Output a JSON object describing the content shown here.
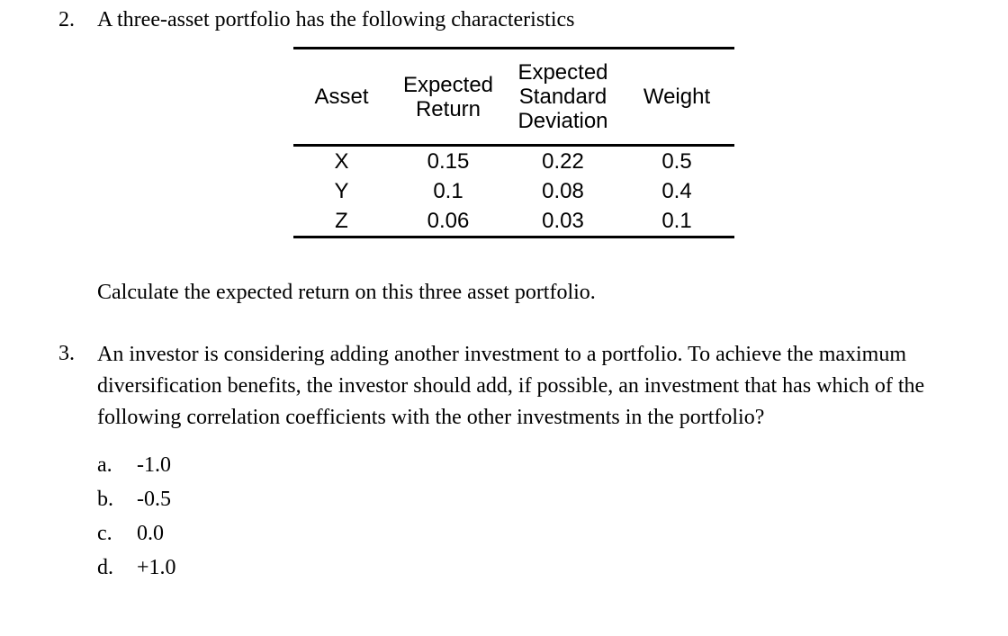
{
  "question2": {
    "number": "2.",
    "text": "A three-asset portfolio has the following characteristics",
    "table": {
      "headers": [
        "Asset",
        "Expected Return",
        "Expected Standard Deviation",
        "Weight"
      ],
      "rows": [
        [
          "X",
          "0.15",
          "0.22",
          "0.5"
        ],
        [
          "Y",
          "0.1",
          "0.08",
          "0.4"
        ],
        [
          "Z",
          "0.06",
          "0.03",
          "0.1"
        ]
      ]
    },
    "prompt": "Calculate the expected return on this three asset portfolio."
  },
  "question3": {
    "number": "3.",
    "text": "An investor is considering adding another investment to a portfolio. To achieve the maximum diversification benefits, the investor should add, if possible, an investment that has which of the following correlation coefficients with the other investments in the portfolio?",
    "options": [
      {
        "label": "a.",
        "value": "-1.0"
      },
      {
        "label": "b.",
        "value": "-0.5"
      },
      {
        "label": "c.",
        "value": "0.0"
      },
      {
        "label": "d.",
        "value": "+1.0"
      }
    ]
  }
}
